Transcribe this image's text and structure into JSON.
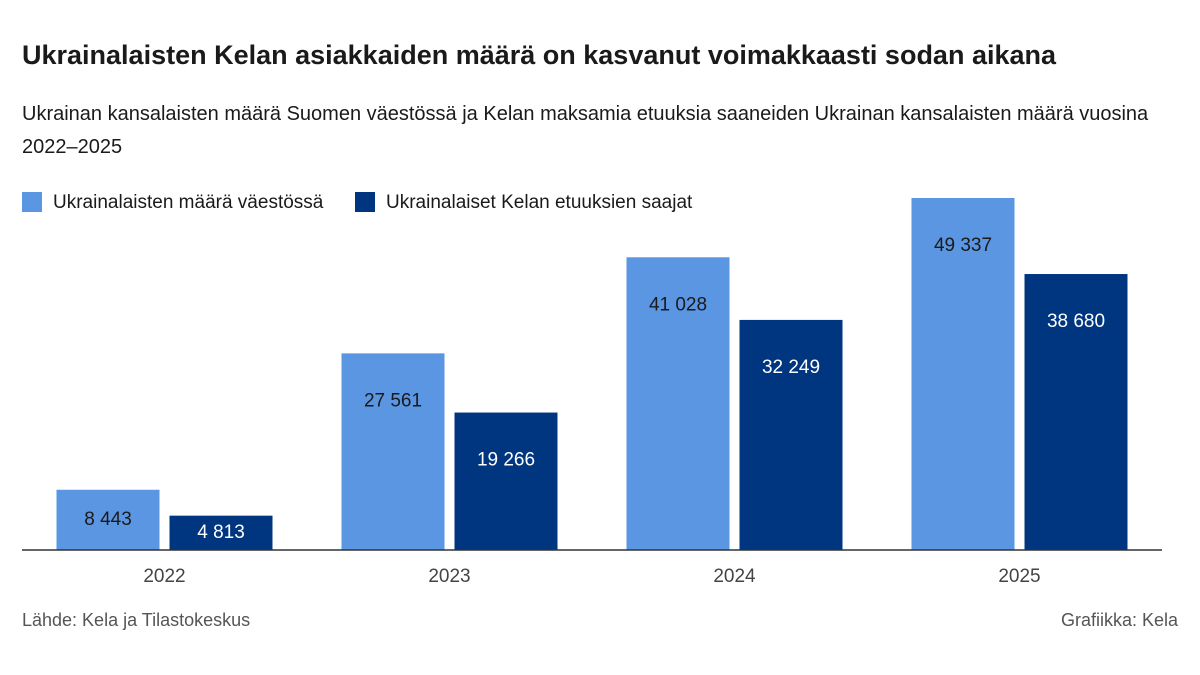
{
  "chart_data": {
    "type": "bar",
    "title": "Ukrainalaisten Kelan asiakkaiden määrä on kasvanut voimakkaasti sodan aikana",
    "subtitle": "Ukrainan kansalaisten määrä Suomen väestössä ja Kelan maksamia etuuksia saaneiden Ukrainan kansalaisten määrä vuosina 2022–2025",
    "categories": [
      "2022",
      "2023",
      "2024",
      "2025"
    ],
    "series": [
      {
        "name": "Ukrainalaisten määrä väestössä",
        "color": "#5b96e3",
        "values": [
          8443,
          27561,
          41028,
          49337
        ],
        "value_labels": [
          "8 443",
          "27 561",
          "41 028",
          "49 337"
        ]
      },
      {
        "name": "Ukrainalaiset Kelan etuuksien saajat",
        "color": "#003580",
        "values": [
          4813,
          19266,
          32249,
          38680
        ],
        "value_labels": [
          "4 813",
          "19 266",
          "32 249",
          "38 680"
        ]
      }
    ],
    "source": "Lähde: Kela ja Tilastokeskus",
    "credit": "Grafiikka: Kela"
  }
}
